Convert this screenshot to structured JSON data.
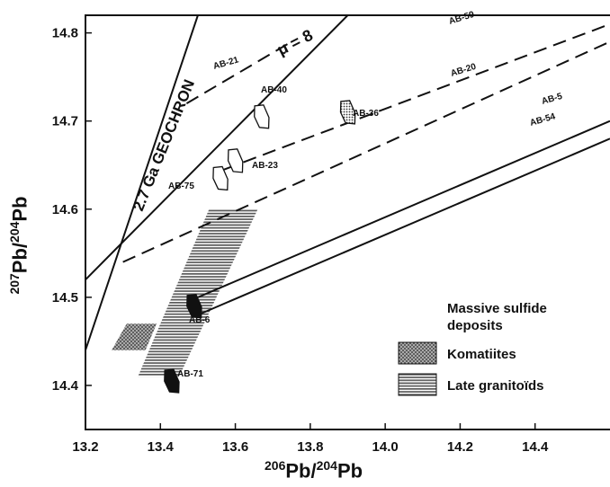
{
  "chart_data": {
    "type": "scatter",
    "title": "",
    "xlabel": {
      "mass_x": "206",
      "text_x": "Pb/",
      "mass_x2": "204",
      "text_x2": "Pb"
    },
    "ylabel": {
      "mass_y": "207",
      "text_y": "Pb/",
      "mass_y2": "204",
      "text_y2": "Pb"
    },
    "xlim": [
      13.2,
      14.6
    ],
    "ylim": [
      14.35,
      14.82
    ],
    "xticks": [
      "13.2",
      "13.4",
      "13.6",
      "13.8",
      "14.0",
      "14.2",
      "14.4"
    ],
    "yticks": [
      "14.4",
      "14.5",
      "14.6",
      "14.7",
      "14.8"
    ],
    "grid": false,
    "lines": [
      {
        "label": "2.7 Ga GEOCHRON",
        "style": "solid",
        "points": [
          [
            13.2,
            14.44
          ],
          [
            13.5,
            14.82
          ]
        ]
      },
      {
        "label": "μ = 8",
        "style": "solid",
        "points": [
          [
            13.2,
            14.52
          ],
          [
            13.9,
            14.82
          ]
        ]
      },
      {
        "label": "AB-21",
        "style": "dashed",
        "points": [
          [
            13.47,
            14.72
          ],
          [
            13.75,
            14.79
          ]
        ]
      },
      {
        "label": "AB-59",
        "style": "dashed",
        "points": [
          [
            13.57,
            14.645
          ],
          [
            14.6,
            14.81
          ]
        ]
      },
      {
        "label": "AB-20",
        "style": "dashed",
        "points": [
          [
            13.3,
            14.54
          ],
          [
            14.6,
            14.79
          ]
        ]
      },
      {
        "label": "AB-5",
        "style": "solid",
        "points": [
          [
            13.5,
            14.5
          ],
          [
            14.6,
            14.7
          ]
        ]
      },
      {
        "label": "AB-54",
        "style": "solid",
        "points": [
          [
            13.5,
            14.48
          ],
          [
            14.6,
            14.68
          ]
        ]
      }
    ],
    "point_labels": [
      "AB-21",
      "AB-40",
      "AB-36",
      "AB-59",
      "AB-23",
      "AB-20",
      "AB-75",
      "AB-5",
      "AB-54",
      "AB-6",
      "AB-71"
    ],
    "samples": [
      {
        "label": "AB-40",
        "fill": "white",
        "x": 13.67,
        "y": 14.705
      },
      {
        "label": "AB-36",
        "fill": "dotted",
        "x": 13.9,
        "y": 14.71
      },
      {
        "label": "AB-23",
        "fill": "white",
        "x": 13.6,
        "y": 14.655
      },
      {
        "label": "AB-75",
        "fill": "white",
        "x": 13.56,
        "y": 14.635
      },
      {
        "label": "AB-6",
        "fill": "black",
        "x": 13.49,
        "y": 14.49
      },
      {
        "label": "AB-71",
        "fill": "black",
        "x": 13.43,
        "y": 14.405
      }
    ],
    "fields": [
      {
        "name": "Komatiites",
        "pattern": "crosshatch",
        "polygon": [
          [
            13.27,
            14.44
          ],
          [
            13.36,
            14.44
          ],
          [
            13.39,
            14.47
          ],
          [
            13.31,
            14.47
          ]
        ]
      },
      {
        "name": "Late granitoïds",
        "pattern": "horizontal-lines",
        "polygon": [
          [
            13.34,
            14.41
          ],
          [
            13.45,
            14.41
          ],
          [
            13.66,
            14.6
          ],
          [
            13.53,
            14.6
          ]
        ]
      }
    ],
    "legend": {
      "position": "bottom-right",
      "entries": [
        {
          "label": "Massive sulfide\ndeposits",
          "symbol": "dots"
        },
        {
          "label": "Komatiites",
          "symbol": "crosshatch"
        },
        {
          "label": "Late granitoïds",
          "symbol": "horizontal-lines"
        }
      ]
    }
  }
}
